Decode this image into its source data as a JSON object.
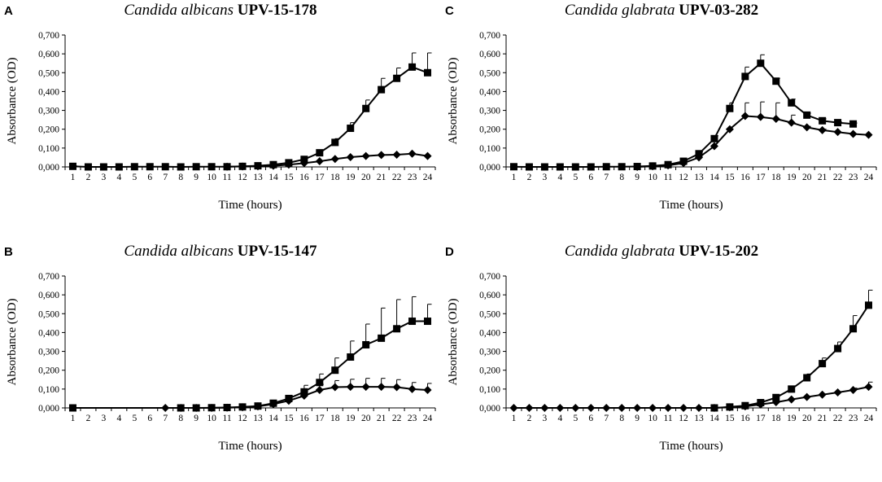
{
  "figure": {
    "chart_data": [
      {
        "type": "line",
        "panel": "A",
        "title": {
          "species": "Candida albicans",
          "strain": "UPV-15-178"
        },
        "xlabel": "Time (hours)",
        "ylabel": "Absorbance (OD)",
        "ylim": [
          0,
          0.7
        ],
        "yticks": [
          "0,000",
          "0,100",
          "0,200",
          "0,300",
          "0,400",
          "0,500",
          "0,600",
          "0,700"
        ],
        "categories": [
          "1",
          "2",
          "3",
          "4",
          "5",
          "6",
          "7",
          "8",
          "9",
          "10",
          "11",
          "12",
          "13",
          "14",
          "15",
          "16",
          "17",
          "18",
          "19",
          "20",
          "21",
          "22",
          "23",
          "24"
        ],
        "series": [
          {
            "name": "square",
            "marker": "square",
            "values": [
              0.003,
              0,
              0,
              0,
              0.001,
              0.001,
              0.001,
              0,
              0.001,
              0.001,
              0.001,
              0.003,
              0.006,
              0.012,
              0.022,
              0.04,
              0.075,
              0.13,
              0.205,
              0.31,
              0.41,
              0.47,
              0.53,
              0.5
            ],
            "errors": [
              0.003,
              0,
              0,
              0,
              0,
              0,
              0,
              0,
              0,
              0,
              0,
              0.002,
              0.003,
              0.004,
              0.006,
              0.009,
              0.012,
              0.02,
              0.03,
              0.045,
              0.06,
              0.055,
              0.075,
              0.105
            ]
          },
          {
            "name": "diamond",
            "marker": "diamond",
            "values": [
              null,
              null,
              null,
              null,
              null,
              null,
              null,
              null,
              null,
              null,
              0.001,
              0.002,
              0.003,
              0.006,
              0.012,
              0.02,
              0.03,
              0.042,
              0.052,
              0.058,
              0.063,
              0.065,
              0.07,
              0.058
            ],
            "errors": [
              0,
              0,
              0,
              0,
              0,
              0,
              0,
              0,
              0,
              0,
              0,
              0,
              0,
              0,
              0,
              0,
              0,
              0,
              0,
              0,
              0,
              0,
              0,
              0
            ]
          }
        ]
      },
      {
        "type": "line",
        "panel": "B",
        "title": {
          "species": "Candida albicans",
          "strain": "UPV-15-147"
        },
        "xlabel": "Time (hours)",
        "ylabel": "Absorbance (OD)",
        "ylim": [
          0,
          0.7
        ],
        "yticks": [
          "0,000",
          "0,100",
          "0,200",
          "0,300",
          "0,400",
          "0,500",
          "0,600",
          "0,700"
        ],
        "categories": [
          "1",
          "2",
          "3",
          "4",
          "5",
          "6",
          "7",
          "8",
          "9",
          "10",
          "11",
          "12",
          "13",
          "14",
          "15",
          "16",
          "17",
          "18",
          "19",
          "20",
          "21",
          "22",
          "23",
          "24"
        ],
        "series": [
          {
            "name": "square",
            "marker": "square",
            "values": [
              0,
              null,
              null,
              null,
              null,
              null,
              null,
              0,
              0,
              0.001,
              0.002,
              0.005,
              0.01,
              0.025,
              0.05,
              0.085,
              0.135,
              0.2,
              0.27,
              0.335,
              0.37,
              0.42,
              0.46,
              0.46
            ],
            "errors": [
              0,
              0,
              0,
              0,
              0,
              0,
              0,
              0,
              0,
              0,
              0,
              0.002,
              0.004,
              0.008,
              0.015,
              0.035,
              0.045,
              0.065,
              0.085,
              0.11,
              0.16,
              0.155,
              0.13,
              0.09
            ]
          },
          {
            "name": "diamond",
            "marker": "diamond",
            "values": [
              null,
              null,
              null,
              null,
              null,
              null,
              0,
              0,
              0,
              0,
              0.001,
              0.003,
              0.008,
              0.02,
              0.038,
              0.065,
              0.095,
              0.11,
              0.112,
              0.112,
              0.112,
              0.11,
              0.1,
              0.095
            ],
            "errors": [
              0,
              0,
              0,
              0,
              0,
              0,
              0,
              0,
              0,
              0,
              0,
              0,
              0,
              0,
              0.01,
              0.02,
              0.03,
              0.035,
              0.04,
              0.045,
              0.045,
              0.04,
              0.035,
              0.035
            ]
          }
        ]
      },
      {
        "type": "line",
        "panel": "C",
        "title": {
          "species": "Candida glabrata",
          "strain": "UPV-03-282"
        },
        "xlabel": "Time (hours)",
        "ylabel": "Absorbance (OD)",
        "ylim": [
          0,
          0.7
        ],
        "yticks": [
          "0,000",
          "0,100",
          "0,200",
          "0,300",
          "0,400",
          "0,500",
          "0,600",
          "0,700"
        ],
        "categories": [
          "1",
          "2",
          "3",
          "4",
          "5",
          "6",
          "7",
          "8",
          "9",
          "10",
          "11",
          "12",
          "13",
          "14",
          "15",
          "16",
          "17",
          "18",
          "19",
          "20",
          "21",
          "22",
          "23",
          "24"
        ],
        "series": [
          {
            "name": "square",
            "marker": "square",
            "values": [
              0.001,
              0,
              0,
              0,
              0,
              0,
              0.001,
              0.001,
              0.002,
              0.005,
              0.012,
              0.03,
              0.07,
              0.15,
              0.31,
              0.48,
              0.55,
              0.455,
              0.34,
              0.275,
              0.245,
              0.235,
              0.228,
              null
            ],
            "errors": [
              0,
              0,
              0,
              0,
              0,
              0,
              0,
              0,
              0,
              0,
              0,
              0.005,
              0.01,
              0.015,
              0.03,
              0.05,
              0.045,
              0.015,
              0.02,
              0.01,
              0.01,
              0.005,
              0.005,
              0
            ]
          },
          {
            "name": "diamond",
            "marker": "diamond",
            "values": [
              null,
              null,
              null,
              null,
              null,
              null,
              null,
              null,
              0,
              0.003,
              0.008,
              0.02,
              0.05,
              0.11,
              0.2,
              0.27,
              0.265,
              0.255,
              0.235,
              0.21,
              0.195,
              0.185,
              0.175,
              0.17
            ],
            "errors": [
              0,
              0,
              0,
              0,
              0,
              0,
              0,
              0,
              0,
              0,
              0,
              0,
              0,
              0,
              0,
              0.07,
              0.08,
              0.085,
              0.04,
              0.005,
              0.005,
              0,
              0,
              0
            ]
          }
        ]
      },
      {
        "type": "line",
        "panel": "D",
        "title": {
          "species": "Candida glabrata",
          "strain": "UPV-15-202"
        },
        "xlabel": "Time (hours)",
        "ylabel": "Absorbance (OD)",
        "ylim": [
          0,
          0.7
        ],
        "yticks": [
          "0,000",
          "0,100",
          "0,200",
          "0,300",
          "0,400",
          "0,500",
          "0,600",
          "0,700"
        ],
        "categories": [
          "1",
          "2",
          "3",
          "4",
          "5",
          "6",
          "7",
          "8",
          "9",
          "10",
          "11",
          "12",
          "13",
          "14",
          "15",
          "16",
          "17",
          "18",
          "19",
          "20",
          "21",
          "22",
          "23",
          "24"
        ],
        "series": [
          {
            "name": "square",
            "marker": "square",
            "values": [
              null,
              null,
              null,
              null,
              null,
              null,
              null,
              null,
              null,
              null,
              null,
              null,
              null,
              0,
              0.005,
              0.012,
              0.028,
              0.055,
              0.1,
              0.16,
              0.235,
              0.315,
              0.42,
              0.545
            ],
            "errors": [
              0,
              0,
              0,
              0,
              0,
              0,
              0,
              0,
              0,
              0,
              0,
              0,
              0,
              0,
              0,
              0.005,
              0.01,
              0.01,
              0.015,
              0.02,
              0.03,
              0.035,
              0.07,
              0.08
            ]
          },
          {
            "name": "diamond",
            "marker": "diamond",
            "values": [
              0,
              0,
              0,
              0,
              0,
              0,
              0,
              0,
              0,
              0,
              0,
              0,
              0,
              0,
              0.003,
              0.008,
              0.018,
              0.03,
              0.045,
              0.058,
              0.07,
              0.082,
              0.095,
              0.112
            ],
            "errors": [
              0,
              0,
              0,
              0,
              0,
              0,
              0,
              0,
              0,
              0,
              0,
              0,
              0,
              0,
              0,
              0,
              0,
              0,
              0,
              0,
              0,
              0,
              0.01,
              0.025
            ]
          }
        ]
      }
    ]
  }
}
